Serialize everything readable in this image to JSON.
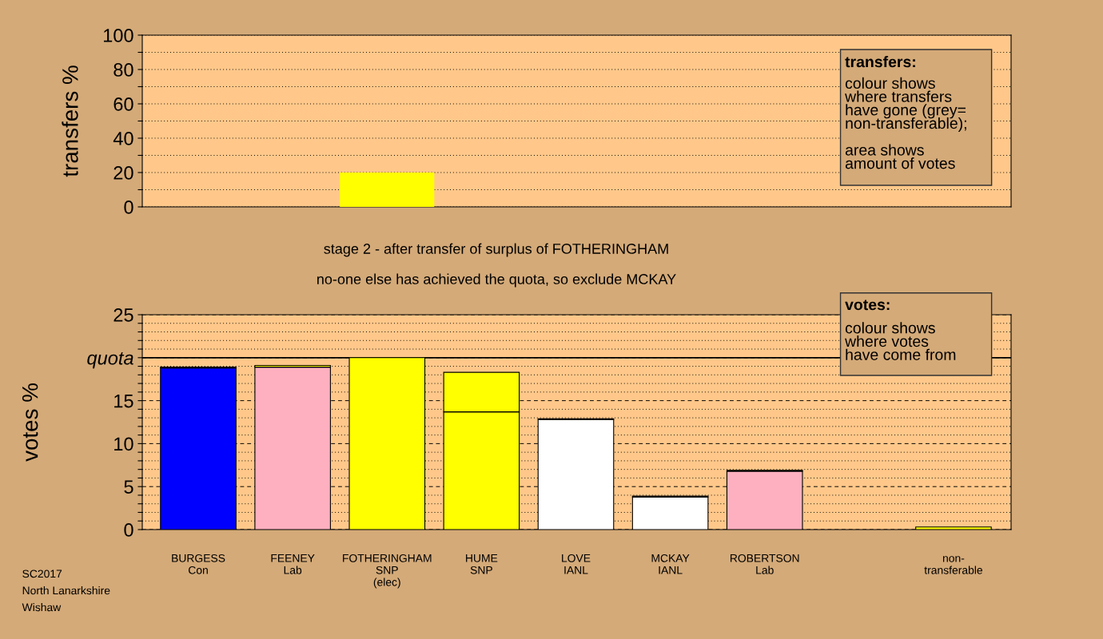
{
  "chart_data": [
    {
      "type": "bar",
      "ylabel": "transfers %",
      "categories": [
        null,
        null,
        null,
        null,
        null,
        null,
        null,
        null,
        null
      ],
      "series": [
        {
          "color": "#ffff00",
          "values": [
            null,
            null,
            20,
            null,
            null,
            null,
            null,
            null,
            null
          ]
        }
      ],
      "ylim": [
        0,
        100
      ],
      "yticks": [
        0,
        {
          "value": 10,
          "label": null
        },
        20,
        {
          "value": 30,
          "label": null
        },
        40,
        {
          "value": 50,
          "label": null
        },
        60,
        {
          "value": 70,
          "label": null
        },
        80,
        {
          "value": 90,
          "label": null
        },
        100
      ],
      "grid": "y",
      "tick_labels": "y",
      "annotations": [
        "transfers:\ncolour shows\nwhere transfers\nhave gone (grey=\nnon-transferable);\n\narea shows\namount of votes"
      ]
    },
    {
      "type": "bar",
      "stacked": true,
      "title": "stage 2 - after transfer of surplus of FOTHERINGHAM",
      "subtitle": "no-one else has achieved the quota, so exclude MCKAY",
      "ylabel": "votes %",
      "categories": [
        "BURGESS\nCon",
        "FEENEY\nLab",
        "FOTHERINGHAM\nSNP\n(elec)",
        "HUME\nSNP",
        "LOVE\nIANL",
        "MCKAY\nIANL",
        "ROBERTSON\nLab",
        null,
        "non-\ntransferable"
      ],
      "series": [
        {
          "colors": [
            "#0000ff",
            "#ffb0c0",
            "#ffff00",
            "#ffff00",
            "#ffffff",
            "#ffffff",
            "#ffb0c0",
            "#ffff00",
            "#ffff00"
          ],
          "values": [
            18.8,
            18.9,
            20,
            13.7,
            12.8,
            3.8,
            6.8,
            null,
            0
          ]
        },
        {
          "color": "#ffff00",
          "values": [
            0.1,
            0.2,
            null,
            4.6,
            0.1,
            0.1,
            0.1,
            null,
            0.3
          ]
        }
      ],
      "ylim": [
        0,
        25
      ],
      "yticks": [
        0,
        {
          "value": 1,
          "label": null
        },
        {
          "value": 2,
          "label": null
        },
        {
          "value": 3,
          "label": null
        },
        {
          "value": 4,
          "label": null
        },
        5,
        {
          "value": 6,
          "label": null
        },
        {
          "value": 7,
          "label": null
        },
        {
          "value": 8,
          "label": null
        },
        {
          "value": 9,
          "label": null
        },
        10,
        {
          "value": 11,
          "label": null
        },
        {
          "value": 12,
          "label": null
        },
        {
          "value": 13,
          "label": null
        },
        {
          "value": 14,
          "label": null
        },
        15,
        {
          "value": 16,
          "label": null
        },
        {
          "value": 17,
          "label": null
        },
        {
          "value": 18,
          "label": null
        },
        {
          "value": 19,
          "label": null
        },
        {
          "value": 20,
          "label": "quota"
        },
        {
          "value": 21,
          "label": null
        },
        {
          "value": 22,
          "label": null
        },
        {
          "value": 23,
          "label": null
        },
        {
          "value": 24,
          "label": null
        },
        25
      ],
      "grid": "y",
      "ref_lines": [
        {
          "axis": "y",
          "value": 20,
          "color": "#000000"
        }
      ],
      "annotations": [
        "votes:\ncolour shows\nwhere votes\nhave come from",
        "SC2017\nNorth Lanarkshire\nWishaw"
      ]
    }
  ]
}
